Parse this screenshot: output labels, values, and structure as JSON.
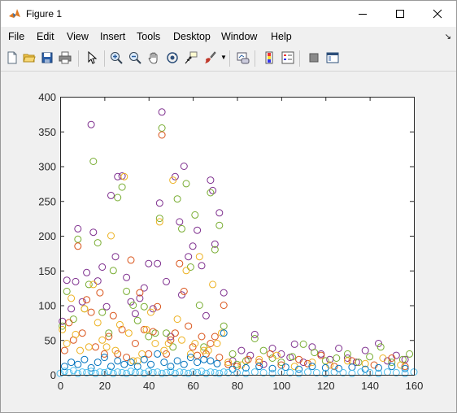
{
  "window": {
    "title": "Figure 1",
    "controls": [
      "minimize",
      "maximize",
      "close"
    ]
  },
  "menu": {
    "items": [
      "File",
      "Edit",
      "View",
      "Insert",
      "Tools",
      "Desktop",
      "Window",
      "Help"
    ]
  },
  "toolbar": {
    "buttons": [
      "new-figure-icon",
      "open-file-icon",
      "save-icon",
      "print-icon",
      "select-arrow-icon",
      "zoom-in-icon",
      "zoom-out-icon",
      "pan-hand-icon",
      "rotate-3d-icon",
      "data-cursor-icon",
      "brush-icon",
      "link-plot-icon",
      "colorbar-icon",
      "legend-icon",
      "hide-plot-tools-icon",
      "show-plot-tools-icon"
    ]
  },
  "chart_data": {
    "type": "scatter",
    "marker": "circle",
    "title": "",
    "xlabel": "",
    "ylabel": "",
    "xlim": [
      0,
      160
    ],
    "ylim": [
      0,
      400
    ],
    "xticks": [
      0,
      20,
      40,
      60,
      80,
      100,
      120,
      140,
      160
    ],
    "yticks": [
      0,
      50,
      100,
      150,
      200,
      250,
      300,
      350,
      400
    ],
    "grid": false,
    "legend": "none",
    "colors": {
      "purple": "#7e2f8e",
      "green": "#77ac30",
      "orange": "#d95319",
      "yellow": "#edb120",
      "blue": "#0072bd",
      "cyan": "#4dbeee"
    },
    "series": [
      {
        "color": "#7e2f8e",
        "x": [
          1,
          3,
          5,
          7,
          8,
          10,
          12,
          14,
          15,
          17,
          19,
          21,
          23,
          25,
          26,
          28,
          30,
          32,
          34,
          36,
          38,
          40,
          42,
          44,
          45,
          46,
          48,
          50,
          52,
          54,
          55,
          56,
          58,
          60,
          62,
          64,
          66,
          68,
          69,
          70,
          72,
          74,
          78,
          82,
          86,
          88,
          92,
          96,
          100,
          104,
          106,
          110,
          114,
          118,
          122,
          126,
          130,
          134,
          138,
          144,
          148,
          152,
          156
        ],
        "y": [
          77,
          136,
          95,
          134,
          210,
          105,
          147,
          360,
          205,
          135,
          155,
          98,
          258,
          170,
          285,
          286,
          140,
          105,
          88,
          110,
          125,
          160,
          95,
          160,
          247,
          378,
          134,
          55,
          285,
          220,
          115,
          300,
          170,
          185,
          208,
          157,
          85,
          280,
          265,
          188,
          233,
          118,
          20,
          35,
          28,
          58,
          15,
          38,
          30,
          25,
          44,
          18,
          40,
          30,
          22,
          38,
          24,
          18,
          35,
          45,
          20,
          28,
          22
        ]
      },
      {
        "color": "#77ac30",
        "x": [
          1,
          3,
          6,
          8,
          11,
          13,
          15,
          17,
          19,
          22,
          24,
          26,
          28,
          30,
          33,
          35,
          38,
          40,
          43,
          45,
          46,
          48,
          51,
          53,
          55,
          57,
          59,
          61,
          63,
          65,
          68,
          70,
          72,
          74,
          78,
          80,
          84,
          88,
          92,
          96,
          100,
          105,
          110,
          115,
          120,
          125,
          130,
          135,
          140,
          145,
          150,
          155,
          158
        ],
        "y": [
          70,
          120,
          80,
          195,
          95,
          130,
          307,
          190,
          90,
          60,
          150,
          255,
          270,
          120,
          100,
          78,
          98,
          55,
          60,
          225,
          355,
          60,
          40,
          253,
          210,
          275,
          155,
          230,
          100,
          40,
          262,
          180,
          215,
          70,
          30,
          15,
          20,
          52,
          35,
          24,
          18,
          26,
          44,
          32,
          20,
          24,
          30,
          18,
          26,
          40,
          18,
          22,
          30
        ]
      },
      {
        "color": "#d95319",
        "x": [
          2,
          4,
          6,
          8,
          10,
          12,
          14,
          16,
          18,
          20,
          22,
          24,
          26,
          28,
          30,
          32,
          34,
          36,
          38,
          40,
          42,
          44,
          46,
          48,
          50,
          52,
          54,
          56,
          58,
          60,
          62,
          64,
          66,
          68,
          70,
          72,
          74,
          76,
          80,
          85,
          90,
          95,
          100,
          108,
          112,
          118,
          124,
          132,
          142,
          150,
          156
        ],
        "y": [
          35,
          75,
          50,
          185,
          60,
          108,
          90,
          40,
          118,
          30,
          55,
          85,
          30,
          65,
          25,
          165,
          45,
          118,
          65,
          30,
          62,
          98,
          345,
          30,
          50,
          60,
          160,
          120,
          70,
          40,
          28,
          55,
          30,
          45,
          55,
          25,
          100,
          15,
          12,
          22,
          18,
          30,
          14,
          22,
          16,
          28,
          12,
          20,
          14,
          24,
          12
        ]
      },
      {
        "color": "#edb120",
        "x": [
          1,
          3,
          5,
          7,
          9,
          11,
          13,
          15,
          17,
          19,
          21,
          23,
          25,
          27,
          29,
          31,
          33,
          35,
          37,
          39,
          41,
          43,
          45,
          47,
          49,
          51,
          53,
          55,
          57,
          59,
          61,
          63,
          65,
          67,
          69,
          71,
          73,
          76,
          82,
          90,
          98,
          106,
          114,
          122,
          130,
          138,
          146,
          154
        ],
        "y": [
          65,
          45,
          110,
          58,
          35,
          95,
          40,
          130,
          75,
          50,
          40,
          200,
          35,
          72,
          285,
          60,
          20,
          20,
          30,
          65,
          90,
          45,
          220,
          35,
          45,
          280,
          80,
          50,
          150,
          30,
          45,
          170,
          35,
          35,
          130,
          45,
          60,
          18,
          14,
          22,
          28,
          12,
          18,
          14,
          20,
          16,
          24,
          14
        ]
      },
      {
        "color": "#0072bd",
        "x": [
          2,
          5,
          8,
          11,
          14,
          17,
          20,
          23,
          26,
          29,
          32,
          35,
          38,
          41,
          44,
          47,
          50,
          53,
          56,
          59,
          62,
          65,
          68,
          71,
          74,
          78,
          84,
          90,
          96,
          102,
          108,
          114,
          120,
          126,
          132,
          138,
          144,
          150,
          156
        ],
        "y": [
          12,
          18,
          15,
          22,
          10,
          18,
          25,
          12,
          20,
          15,
          18,
          12,
          22,
          15,
          30,
          18,
          12,
          20,
          15,
          25,
          18,
          22,
          20,
          16,
          60,
          8,
          10,
          12,
          9,
          11,
          8,
          12,
          10,
          9,
          11,
          8,
          10,
          12,
          9
        ]
      },
      {
        "color": "#4dbeee",
        "x": [
          0,
          2,
          4,
          6,
          8,
          10,
          12,
          14,
          16,
          18,
          20,
          22,
          24,
          26,
          28,
          30,
          32,
          34,
          36,
          38,
          40,
          42,
          44,
          46,
          48,
          50,
          52,
          54,
          56,
          58,
          60,
          62,
          64,
          66,
          68,
          70,
          72,
          74,
          76,
          80,
          84,
          88,
          92,
          96,
          100,
          104,
          108,
          112,
          116,
          120,
          124,
          128,
          132,
          136,
          140,
          144,
          148,
          152,
          156,
          160
        ],
        "y": [
          2,
          5,
          3,
          6,
          2,
          4,
          3,
          5,
          2,
          4,
          3,
          5,
          2,
          4,
          3,
          2,
          5,
          3,
          4,
          2,
          5,
          3,
          4,
          2,
          3,
          5,
          2,
          4,
          3,
          2,
          4,
          3,
          5,
          2,
          4,
          3,
          2,
          4,
          3,
          3,
          2,
          4,
          3,
          2,
          4,
          3,
          2,
          4,
          3,
          2,
          4,
          3,
          2,
          4,
          3,
          2,
          4,
          3,
          2,
          4
        ]
      }
    ]
  }
}
